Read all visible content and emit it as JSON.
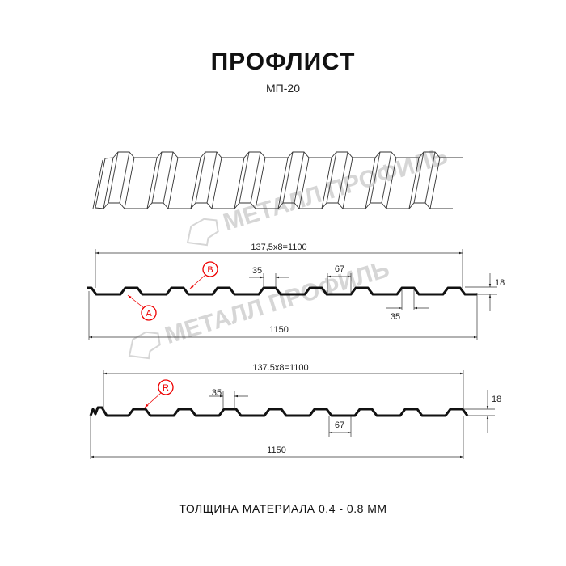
{
  "header": {
    "title": "ПРОФЛИСТ",
    "subtitle": "МП-20"
  },
  "watermark": {
    "text": "МЕТАЛЛ ПРОФИЛЬ"
  },
  "profile_1": {
    "pitch_label": "137,5x8=1100",
    "width_label": "1150",
    "top_width_label": "35",
    "bottom_width_label": "67",
    "bottom_top_width_label": "35",
    "height_label": "18",
    "marker_a": "A",
    "marker_b": "B"
  },
  "profile_2": {
    "pitch_label": "137.5x8=1100",
    "width_label": "1150",
    "top_width_label": "35",
    "bottom_width_label": "67",
    "height_label": "18",
    "marker_r": "R"
  },
  "footer": {
    "thickness": "ТОЛЩИНА МАТЕРИАЛА 0.4 - 0.8 ММ"
  },
  "colors": {
    "profile": "#111111",
    "marker": "#e00000",
    "watermark": "#d6d6d6"
  }
}
